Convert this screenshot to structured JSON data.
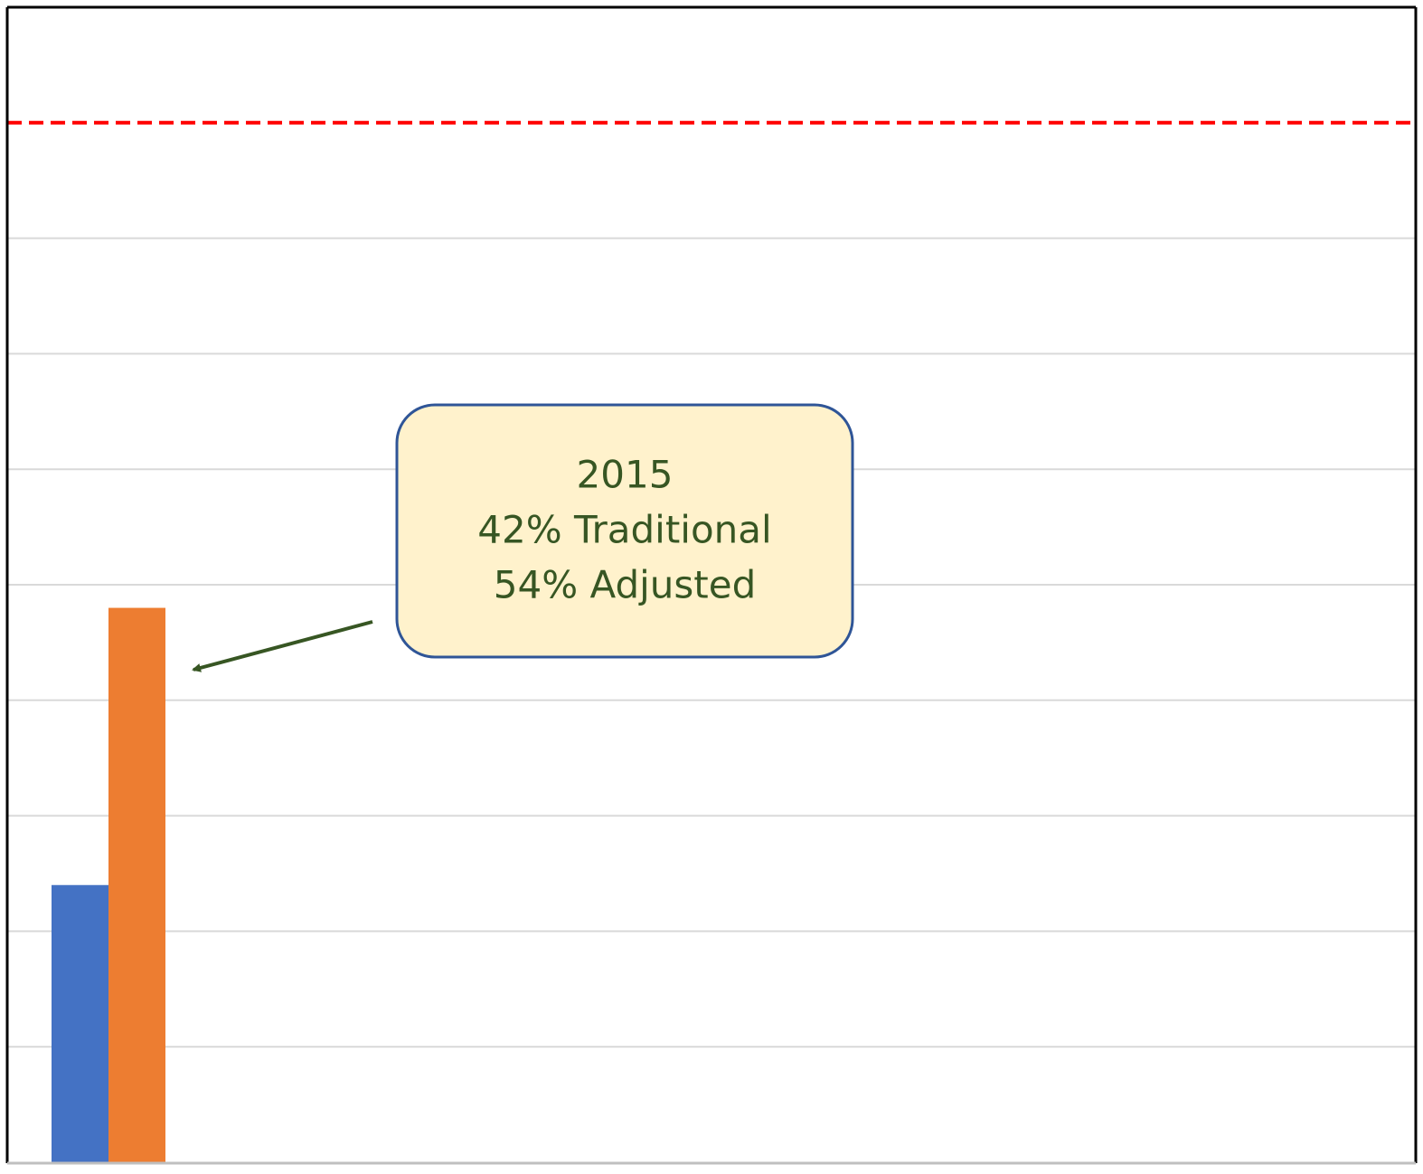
{
  "chart_data": {
    "type": "bar",
    "categories": [
      null
    ],
    "series": [
      {
        "color": "#4472c4",
        "values": [
          42
        ]
      },
      {
        "color": "#ed7d31",
        "values": [
          54
        ]
      }
    ],
    "ylim": [
      30,
      80
    ],
    "yticks": [
      35,
      40,
      45,
      50,
      55,
      60,
      65,
      70
    ],
    "grid": true,
    "reference_line": {
      "value": 75,
      "color": "#ff0000"
    },
    "annotation": {
      "lines": [
        "2015",
        "42% Traditional",
        "54% Adjusted"
      ]
    }
  }
}
